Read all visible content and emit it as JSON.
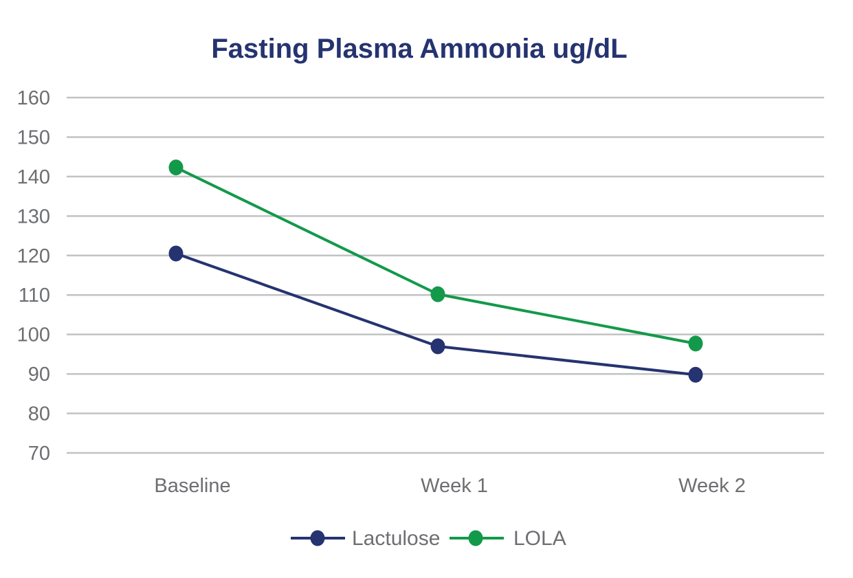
{
  "chart_data": {
    "type": "line",
    "title": "Fasting Plasma Ammonia ug/dL",
    "xlabel": "",
    "ylabel": "",
    "categories": [
      "Baseline",
      "Week 1",
      "Week 2"
    ],
    "yticks": [
      160,
      150,
      140,
      130,
      120,
      110,
      100,
      90,
      80,
      70
    ],
    "ylim": [
      70,
      160
    ],
    "grid": true,
    "legend_position": "bottom-center",
    "series": [
      {
        "name": "Lactulose",
        "color": "#253370",
        "values": [
          120.5,
          97,
          89.8
        ]
      },
      {
        "name": "LOLA",
        "color": "#13994a",
        "values": [
          142.3,
          110.2,
          97.7
        ]
      }
    ]
  }
}
